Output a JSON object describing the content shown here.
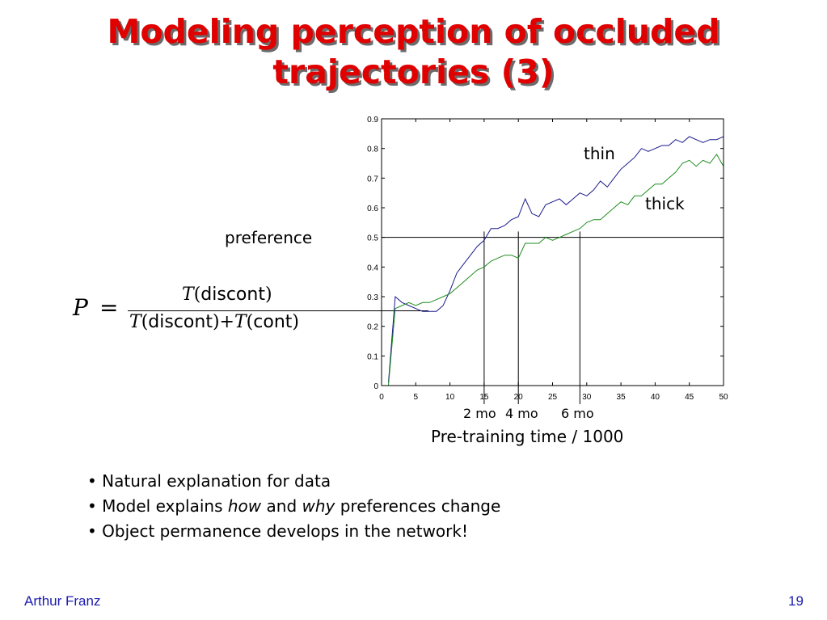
{
  "slide": {
    "title_line1": "Modeling perception of occluded",
    "title_line2": "trajectories (3)",
    "author": "Arthur Franz",
    "page_number": "19"
  },
  "formula": {
    "lhs": "P",
    "numerator_fn": "T",
    "numerator_arg": "discont",
    "denominator_fn1": "T",
    "denominator_arg1": "discont",
    "denominator_fn2": "T",
    "denominator_arg2": "cont"
  },
  "labels": {
    "preference": "preference",
    "thin": "thin",
    "thick": "thick",
    "age_2mo": "2 mo",
    "age_4mo": "4 mo",
    "age_6mo": "6 mo",
    "xaxis": "Pre-training time / 1000"
  },
  "bullets": [
    {
      "pre": "Natural explanation for data",
      "em1": "",
      "mid": "",
      "em2": "",
      "post": ""
    },
    {
      "pre": "Model explains ",
      "em1": "how",
      "mid": " and ",
      "em2": "why",
      "post": " preferences change"
    },
    {
      "pre": "Object permanence develops in the network!",
      "em1": "",
      "mid": "",
      "em2": "",
      "post": ""
    }
  ],
  "chart_data": {
    "type": "line",
    "xlim": [
      0,
      50
    ],
    "ylim": [
      0,
      0.9
    ],
    "xticks": [
      0,
      5,
      10,
      15,
      20,
      25,
      30,
      35,
      40,
      45,
      50
    ],
    "yticks": [
      0,
      0.1,
      0.2,
      0.3,
      0.4,
      0.5,
      0.6,
      0.7,
      0.8,
      0.9
    ],
    "hline": 0.5,
    "vlines": [
      15,
      20,
      29
    ],
    "series": [
      {
        "name": "thin",
        "color": "#1a1a8c",
        "x": [
          1,
          2,
          3,
          4,
          5,
          6,
          7,
          8,
          9,
          10,
          11,
          12,
          13,
          14,
          15,
          16,
          17,
          18,
          19,
          20,
          21,
          22,
          23,
          24,
          25,
          26,
          27,
          28,
          29,
          30,
          31,
          32,
          33,
          34,
          35,
          36,
          37,
          38,
          39,
          40,
          41,
          42,
          43,
          44,
          45,
          46,
          47,
          48,
          49,
          50
        ],
        "y": [
          0.01,
          0.3,
          0.28,
          0.27,
          0.26,
          0.25,
          0.25,
          0.25,
          0.27,
          0.32,
          0.38,
          0.41,
          0.44,
          0.47,
          0.49,
          0.53,
          0.53,
          0.54,
          0.56,
          0.57,
          0.63,
          0.58,
          0.57,
          0.61,
          0.62,
          0.63,
          0.61,
          0.63,
          0.65,
          0.64,
          0.66,
          0.69,
          0.67,
          0.7,
          0.73,
          0.75,
          0.77,
          0.8,
          0.79,
          0.8,
          0.81,
          0.81,
          0.83,
          0.82,
          0.84,
          0.83,
          0.82,
          0.83,
          0.83,
          0.84
        ]
      },
      {
        "name": "thick",
        "color": "#1e8c1e",
        "x": [
          1,
          2,
          3,
          4,
          5,
          6,
          7,
          8,
          9,
          10,
          11,
          12,
          13,
          14,
          15,
          16,
          17,
          18,
          19,
          20,
          21,
          22,
          23,
          24,
          25,
          26,
          27,
          28,
          29,
          30,
          31,
          32,
          33,
          34,
          35,
          36,
          37,
          38,
          39,
          40,
          41,
          42,
          43,
          44,
          45,
          46,
          47,
          48,
          49,
          50
        ],
        "y": [
          0.0,
          0.26,
          0.27,
          0.28,
          0.27,
          0.28,
          0.28,
          0.29,
          0.3,
          0.31,
          0.33,
          0.35,
          0.37,
          0.39,
          0.4,
          0.42,
          0.43,
          0.44,
          0.44,
          0.43,
          0.48,
          0.48,
          0.48,
          0.5,
          0.49,
          0.5,
          0.51,
          0.52,
          0.53,
          0.55,
          0.56,
          0.56,
          0.58,
          0.6,
          0.62,
          0.61,
          0.64,
          0.64,
          0.66,
          0.68,
          0.68,
          0.7,
          0.72,
          0.75,
          0.76,
          0.74,
          0.76,
          0.75,
          0.78,
          0.74
        ]
      }
    ]
  }
}
